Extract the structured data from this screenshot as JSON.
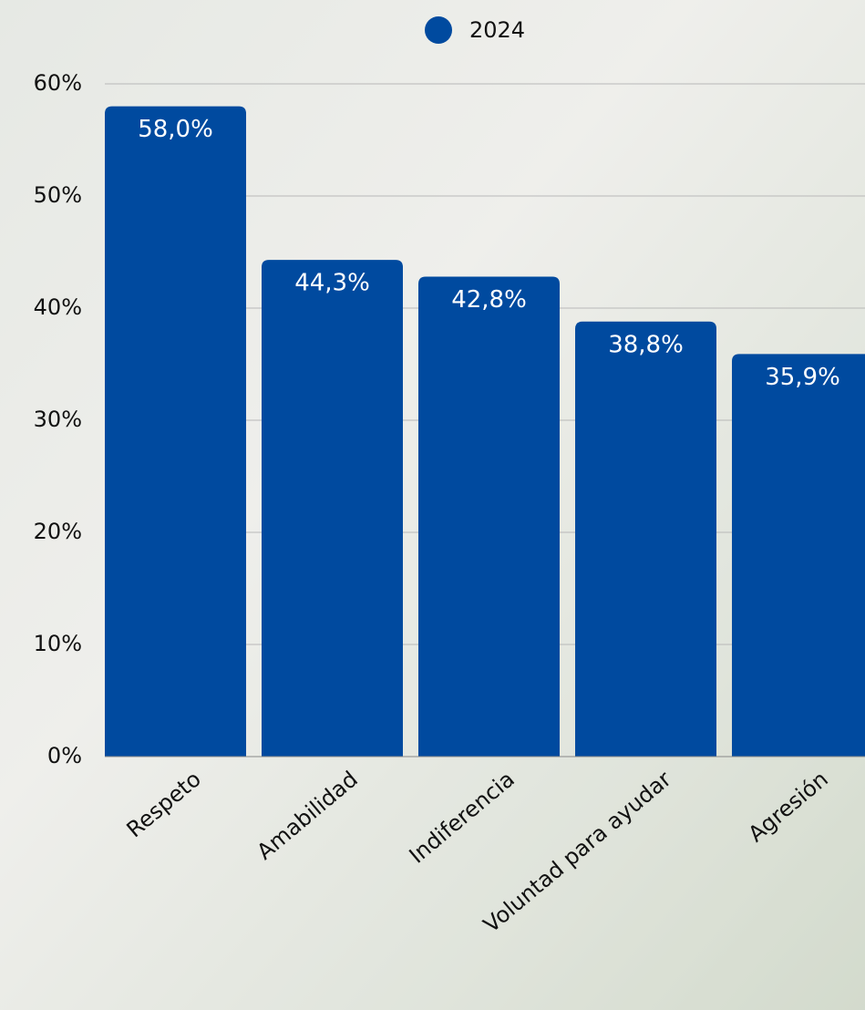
{
  "chart_data": {
    "type": "bar",
    "categories": [
      "Respeto",
      "Amabilidad",
      "Indiferencia",
      "Voluntad para ayudar",
      "Agresión"
    ],
    "series": [
      {
        "name": "2024",
        "color": "#004a9f",
        "values": [
          58.0,
          44.3,
          42.8,
          38.8,
          35.9
        ],
        "value_labels": [
          "58,0%",
          "44,3%",
          "42,8%",
          "38,8%",
          "35,9%"
        ]
      }
    ],
    "ylim": [
      0,
      60
    ],
    "yticks": [
      {
        "value": 0,
        "label": "0%"
      },
      {
        "value": 10,
        "label": "10%"
      },
      {
        "value": 20,
        "label": "20%"
      },
      {
        "value": 30,
        "label": "30%"
      },
      {
        "value": 40,
        "label": "40%"
      },
      {
        "value": 50,
        "label": "50%"
      },
      {
        "value": 60,
        "label": "60%"
      }
    ],
    "grid": true,
    "legend": "top"
  }
}
